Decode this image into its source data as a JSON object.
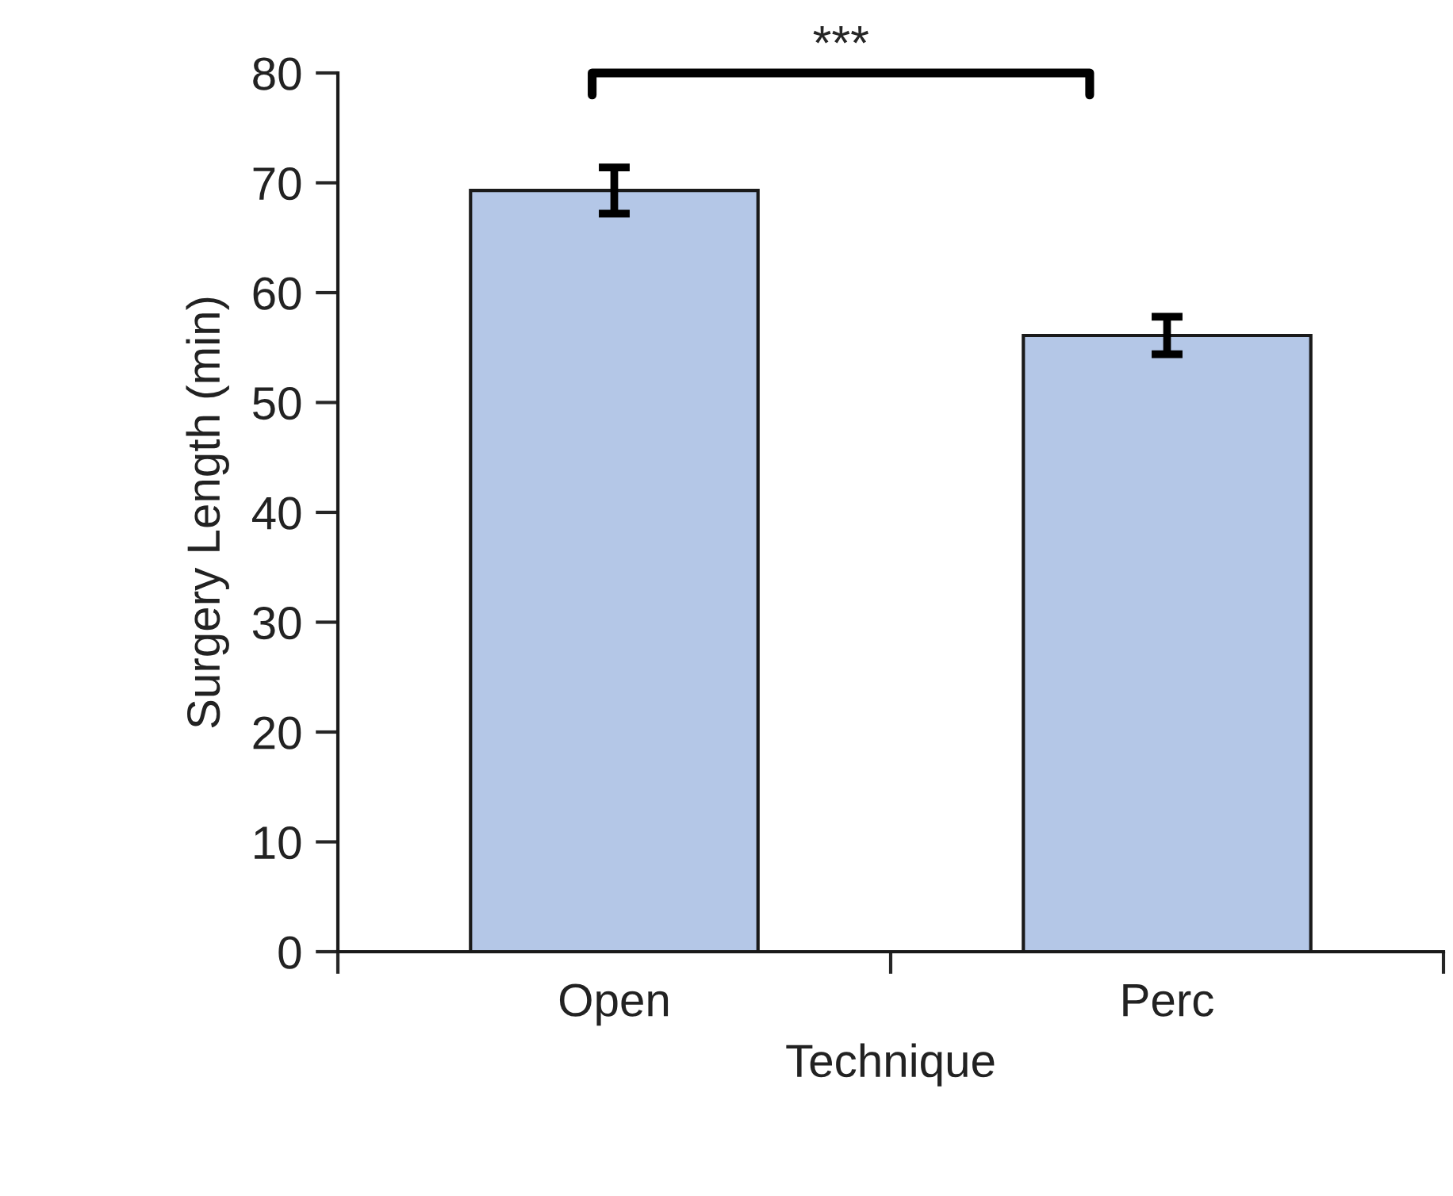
{
  "chart_data": {
    "type": "bar",
    "xlabel": "Technique",
    "ylabel": "Surgery Length (min)",
    "categories": [
      "Open",
      "Perc"
    ],
    "values": [
      69.3,
      56.1
    ],
    "errors": [
      2.1,
      1.7
    ],
    "color": "#b4c7e7",
    "ylim": [
      0,
      80
    ],
    "yticks": [
      0,
      10,
      20,
      30,
      40,
      50,
      60,
      70,
      80
    ],
    "grid": false,
    "annotations": [
      "***"
    ]
  }
}
